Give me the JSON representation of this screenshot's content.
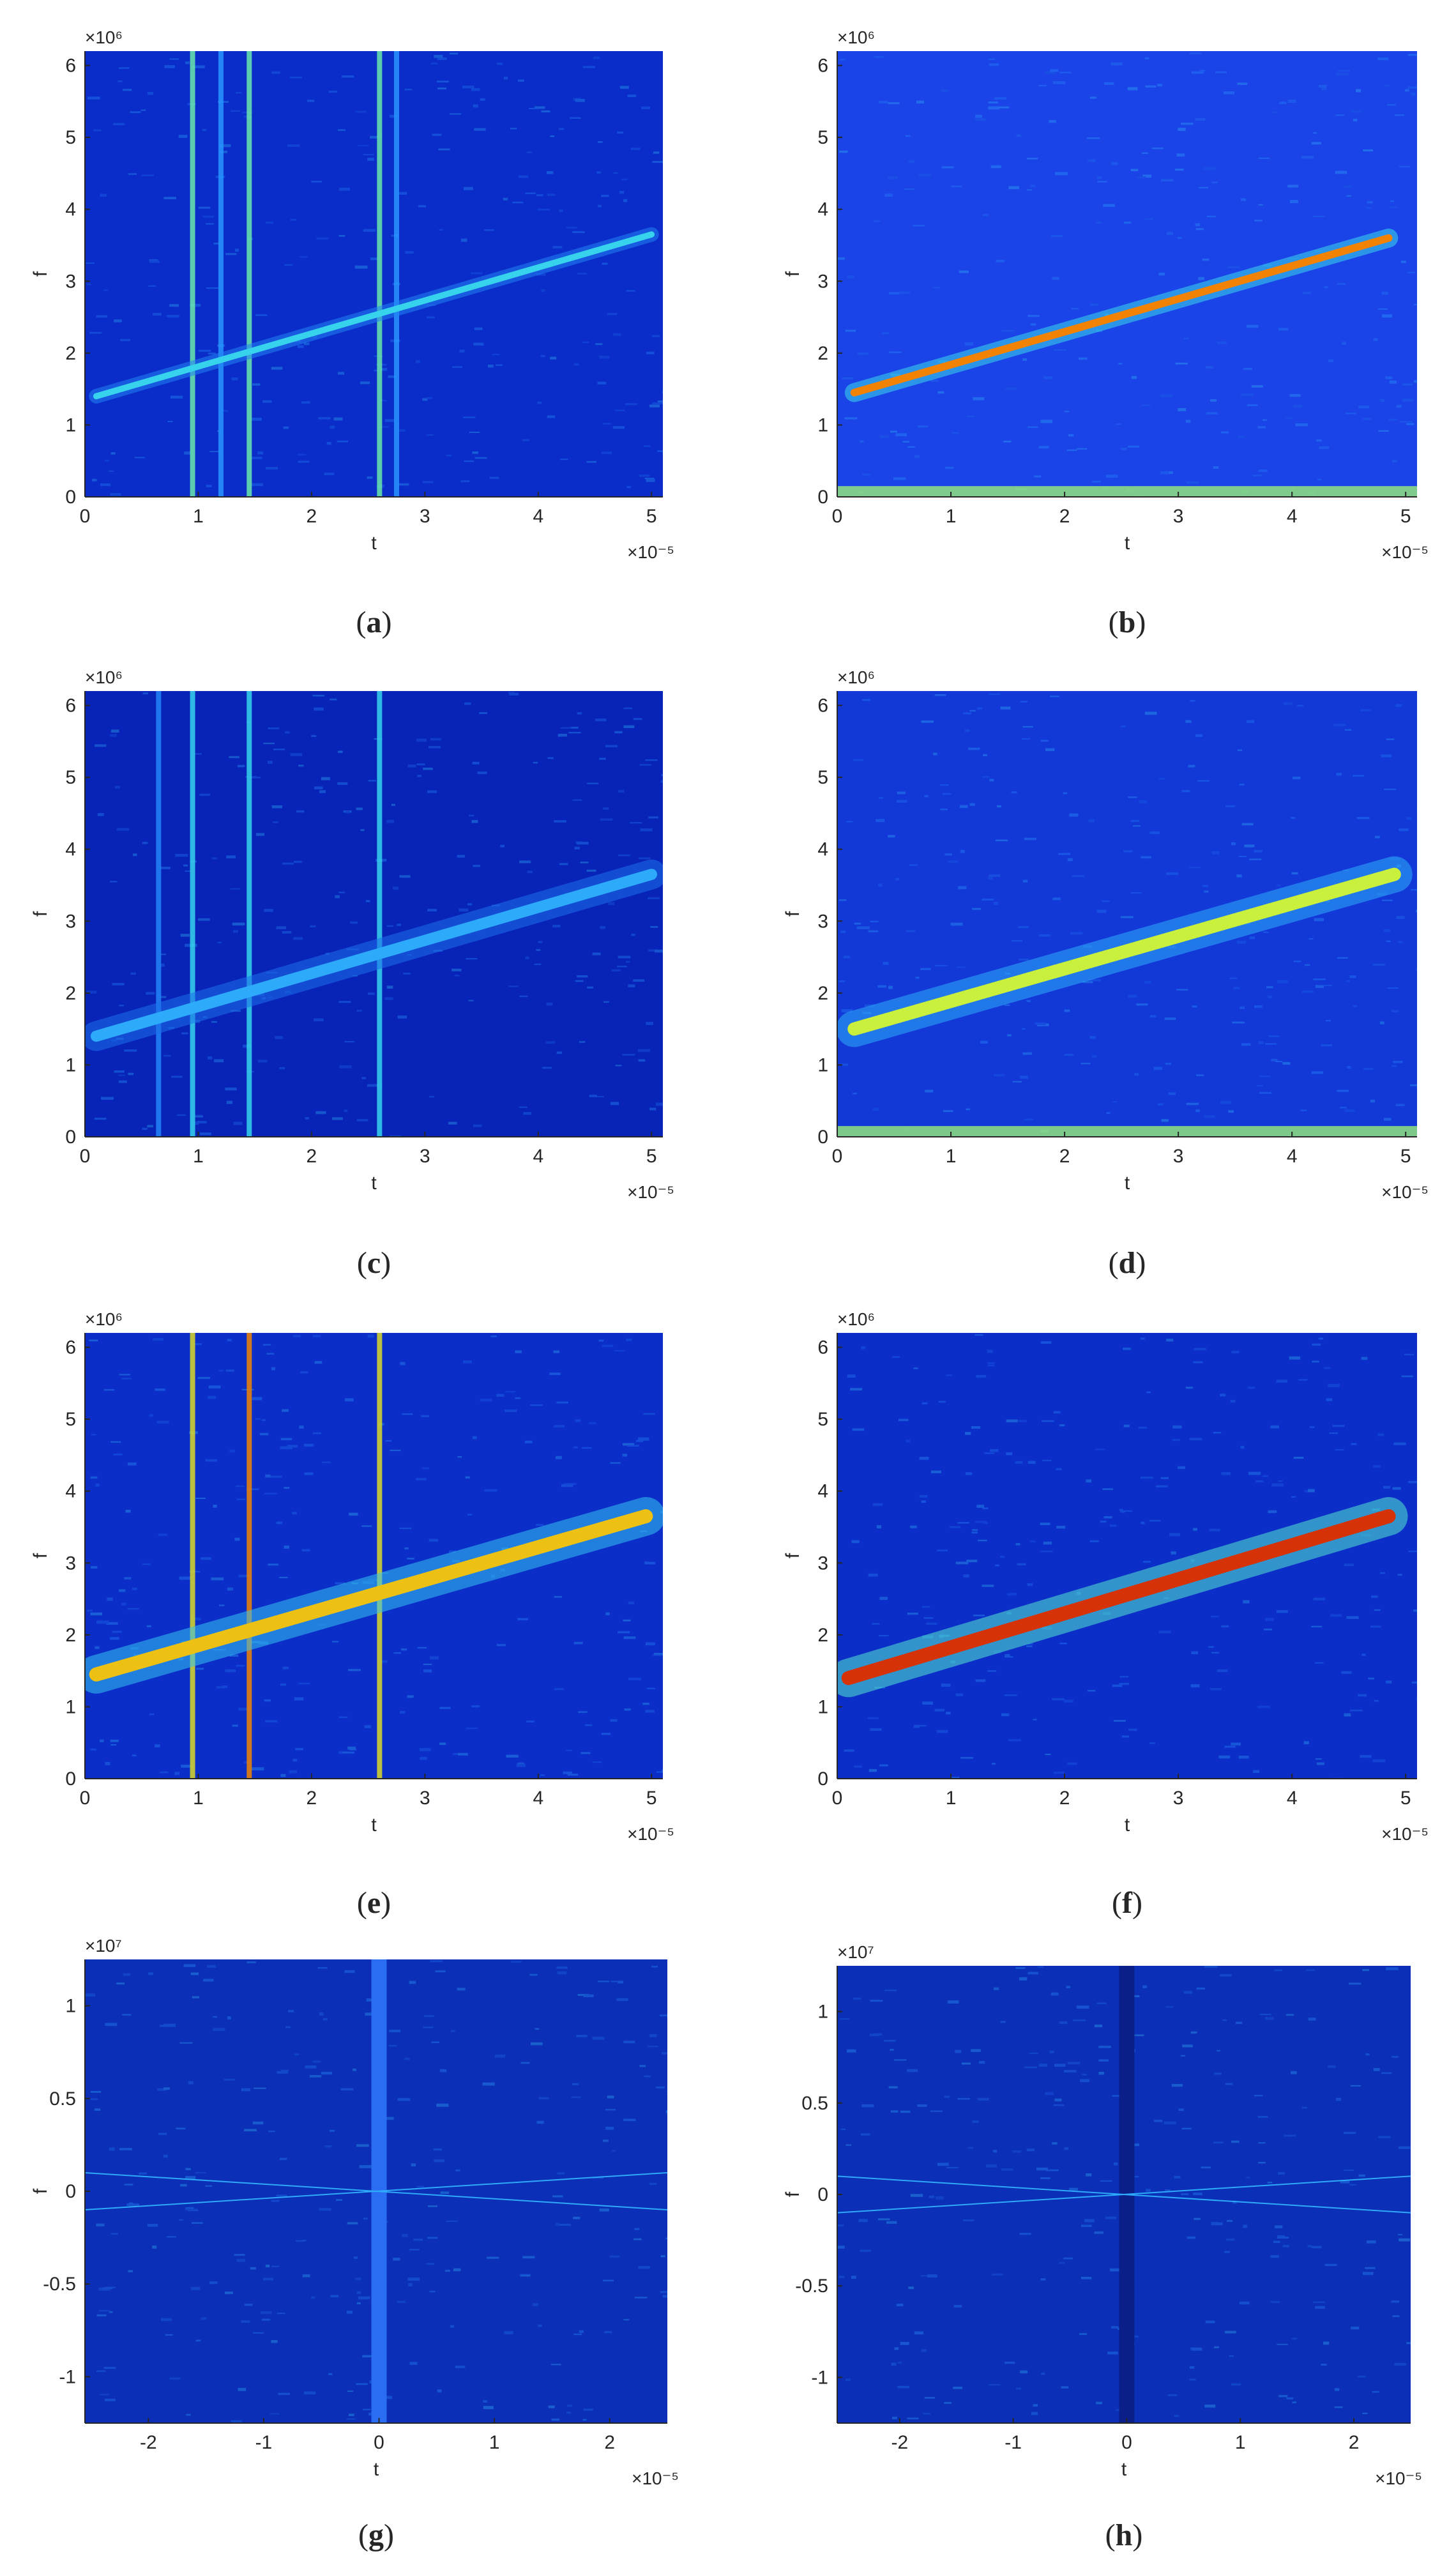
{
  "chart_data": [
    {
      "type": "heatmap",
      "caption": "(a)",
      "caption_letter": "a",
      "xlabel": "t",
      "ylabel": "f",
      "x_exponent_label": "×10⁻⁵",
      "y_exponent_label": "×10⁶",
      "x_ticks": [
        "0",
        "1",
        "2",
        "3",
        "4",
        "5"
      ],
      "y_ticks": [
        "0",
        "1",
        "2",
        "3",
        "4",
        "5",
        "6"
      ],
      "xlim": [
        0,
        5.1
      ],
      "ylim": [
        0,
        6.2
      ],
      "colormap": "jet",
      "background_color": "#0a2cc8",
      "ridge": {
        "x": [
          0.1,
          5.0
        ],
        "y": [
          1.4,
          3.65
        ],
        "intensity": 0.45,
        "width": 0.05
      },
      "vertical_lines": [
        {
          "x": 0.95,
          "intensity": 0.55
        },
        {
          "x": 1.45,
          "intensity": 0.55
        },
        {
          "x": 2.6,
          "intensity": 0.55
        },
        {
          "x": 1.2,
          "intensity": 0.3
        },
        {
          "x": 2.75,
          "intensity": 0.3
        }
      ],
      "bottom_band": false
    },
    {
      "type": "heatmap",
      "caption": "(b)",
      "caption_letter": "b",
      "xlabel": "t",
      "ylabel": "f",
      "x_exponent_label": "×10⁻⁵",
      "y_exponent_label": "×10⁶",
      "x_ticks": [
        "0",
        "1",
        "2",
        "3",
        "4",
        "5"
      ],
      "y_ticks": [
        "0",
        "1",
        "2",
        "3",
        "4",
        "5",
        "6"
      ],
      "xlim": [
        0,
        5.1
      ],
      "ylim": [
        0,
        6.2
      ],
      "colormap": "jet",
      "background_color": "#1a44e8",
      "ridge": {
        "x": [
          0.15,
          4.85
        ],
        "y": [
          1.45,
          3.6
        ],
        "intensity": 0.85,
        "width": 0.07
      },
      "vertical_lines": [],
      "bottom_band": true
    },
    {
      "type": "heatmap",
      "caption": "(c)",
      "caption_letter": "c",
      "xlabel": "t",
      "ylabel": "f",
      "x_exponent_label": "×10⁻⁵",
      "y_exponent_label": "×10⁶",
      "x_ticks": [
        "0",
        "1",
        "2",
        "3",
        "4",
        "5"
      ],
      "y_ticks": [
        "0",
        "1",
        "2",
        "3",
        "4",
        "5",
        "6"
      ],
      "xlim": [
        0,
        5.1
      ],
      "ylim": [
        0,
        6.2
      ],
      "colormap": "jet",
      "background_color": "#0824b8",
      "ridge": {
        "x": [
          0.1,
          5.0
        ],
        "y": [
          1.4,
          3.65
        ],
        "intensity": 0.35,
        "width": 0.12
      },
      "vertical_lines": [
        {
          "x": 0.95,
          "intensity": 0.45
        },
        {
          "x": 1.45,
          "intensity": 0.45
        },
        {
          "x": 2.6,
          "intensity": 0.45
        },
        {
          "x": 0.65,
          "intensity": 0.25
        }
      ],
      "bottom_band": false
    },
    {
      "type": "heatmap",
      "caption": "(d)",
      "caption_letter": "d",
      "xlabel": "t",
      "ylabel": "f",
      "x_exponent_label": "×10⁻⁵",
      "y_exponent_label": "×10⁶",
      "x_ticks": [
        "0",
        "1",
        "2",
        "3",
        "4",
        "5"
      ],
      "y_ticks": [
        "0",
        "1",
        "2",
        "3",
        "4",
        "5",
        "6"
      ],
      "xlim": [
        0,
        5.1
      ],
      "ylim": [
        0,
        6.2
      ],
      "colormap": "jet",
      "background_color": "#1238d8",
      "ridge": {
        "x": [
          0.15,
          4.9
        ],
        "y": [
          1.5,
          3.65
        ],
        "intensity": 0.65,
        "width": 0.15
      },
      "vertical_lines": [],
      "bottom_band": true
    },
    {
      "type": "heatmap",
      "caption": "(e)",
      "caption_letter": "e",
      "xlabel": "t",
      "ylabel": "f",
      "x_exponent_label": "×10⁻⁵",
      "y_exponent_label": "×10⁶",
      "x_ticks": [
        "0",
        "1",
        "2",
        "3",
        "4",
        "5"
      ],
      "y_ticks": [
        "0",
        "1",
        "2",
        "3",
        "4",
        "5",
        "6"
      ],
      "xlim": [
        0,
        5.1
      ],
      "ylim": [
        0,
        6.2
      ],
      "colormap": "jet",
      "background_color": "#0c2ec8",
      "ridge": {
        "x": [
          0.1,
          4.95
        ],
        "y": [
          1.45,
          3.65
        ],
        "intensity": 0.75,
        "width": 0.16
      },
      "vertical_lines": [
        {
          "x": 0.95,
          "intensity": 0.7
        },
        {
          "x": 1.45,
          "intensity": 0.85
        },
        {
          "x": 2.6,
          "intensity": 0.7
        }
      ],
      "bottom_band": false
    },
    {
      "type": "heatmap",
      "caption": "(f)",
      "caption_letter": "f",
      "xlabel": "t",
      "ylabel": "f",
      "x_exponent_label": "×10⁻⁵",
      "y_exponent_label": "×10⁶",
      "x_ticks": [
        "0",
        "1",
        "2",
        "3",
        "4",
        "5"
      ],
      "y_ticks": [
        "0",
        "1",
        "2",
        "3",
        "4",
        "5",
        "6"
      ],
      "xlim": [
        0,
        5.1
      ],
      "ylim": [
        0,
        6.2
      ],
      "colormap": "jet",
      "background_color": "#0c2ec8",
      "ridge": {
        "x": [
          0.1,
          4.85
        ],
        "y": [
          1.4,
          3.65
        ],
        "intensity": 0.95,
        "width": 0.16
      },
      "vertical_lines": [],
      "bottom_band": false
    },
    {
      "type": "heatmap",
      "caption": "(g)",
      "caption_letter": "g",
      "xlabel": "t",
      "ylabel": "f",
      "x_exponent_label": "×10⁻⁵",
      "y_exponent_label": "×10⁷",
      "x_ticks": [
        "-2",
        "-1",
        "0",
        "1",
        "2"
      ],
      "y_ticks": [
        "-1",
        "-0.5",
        "0",
        "0.5",
        "1"
      ],
      "xlim": [
        -2.55,
        2.5
      ],
      "ylim": [
        -1.25,
        1.25
      ],
      "colormap": "jet",
      "background_color": "#0c2fb8",
      "center_stripe": {
        "x": 0,
        "color": "#2a6cf2"
      },
      "cross_lines": true
    },
    {
      "type": "heatmap",
      "caption": "(h)",
      "caption_letter": "h",
      "xlabel": "t",
      "ylabel": "f",
      "x_exponent_label": "×10⁻⁵",
      "y_exponent_label": "×10⁷",
      "x_ticks": [
        "-2",
        "-1",
        "0",
        "1",
        "2"
      ],
      "y_ticks": [
        "-1",
        "-0.5",
        "0",
        "0.5",
        "1"
      ],
      "xlim": [
        -2.55,
        2.5
      ],
      "ylim": [
        -1.25,
        1.25
      ],
      "colormap": "jet",
      "background_color": "#0c2fb8",
      "center_stripe": {
        "x": 0,
        "color": "#0a1f8a"
      },
      "cross_lines": true
    }
  ]
}
